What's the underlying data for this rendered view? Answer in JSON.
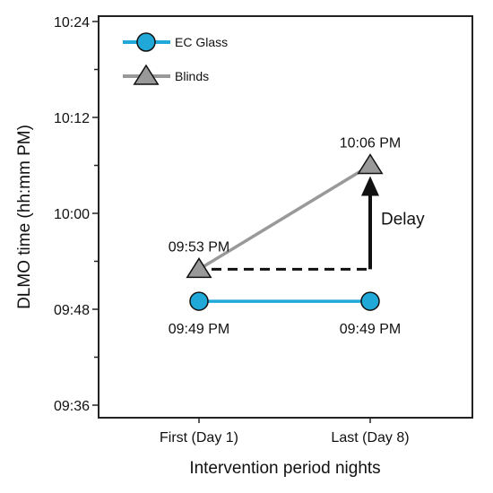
{
  "chart_data": {
    "type": "line",
    "title": "",
    "xlabel": "Intervention period nights",
    "ylabel": "DLMO time (hh:mm PM)",
    "categories": [
      "First (Day 1)",
      "Last (Day 8)"
    ],
    "y_unit": "minutes after 09:36 PM",
    "yticks": [
      {
        "value": 0,
        "label": "09:36"
      },
      {
        "value": 12,
        "label": "09:48"
      },
      {
        "value": 24,
        "label": "10:00"
      },
      {
        "value": 36,
        "label": "10:12"
      },
      {
        "value": 48,
        "label": "10:24"
      }
    ],
    "ylim": [
      0,
      48
    ],
    "grid": false,
    "legend": {
      "position": "top-left"
    },
    "series": [
      {
        "name": "EC Glass",
        "marker": "circle",
        "color": "#1fa8d8",
        "values": [
          13,
          13
        ],
        "labels": [
          "09:49 PM",
          "09:49 PM"
        ],
        "label_position": "below"
      },
      {
        "name": "Blinds",
        "marker": "triangle",
        "color": "#999999",
        "values": [
          17,
          30
        ],
        "labels": [
          "09:53 PM",
          "10:06 PM"
        ],
        "label_position": "above"
      }
    ],
    "annotation": {
      "label": "Delay",
      "from_value": 17,
      "to_value": 30,
      "at_category": "Last (Day 8)",
      "color": "#111111"
    }
  }
}
